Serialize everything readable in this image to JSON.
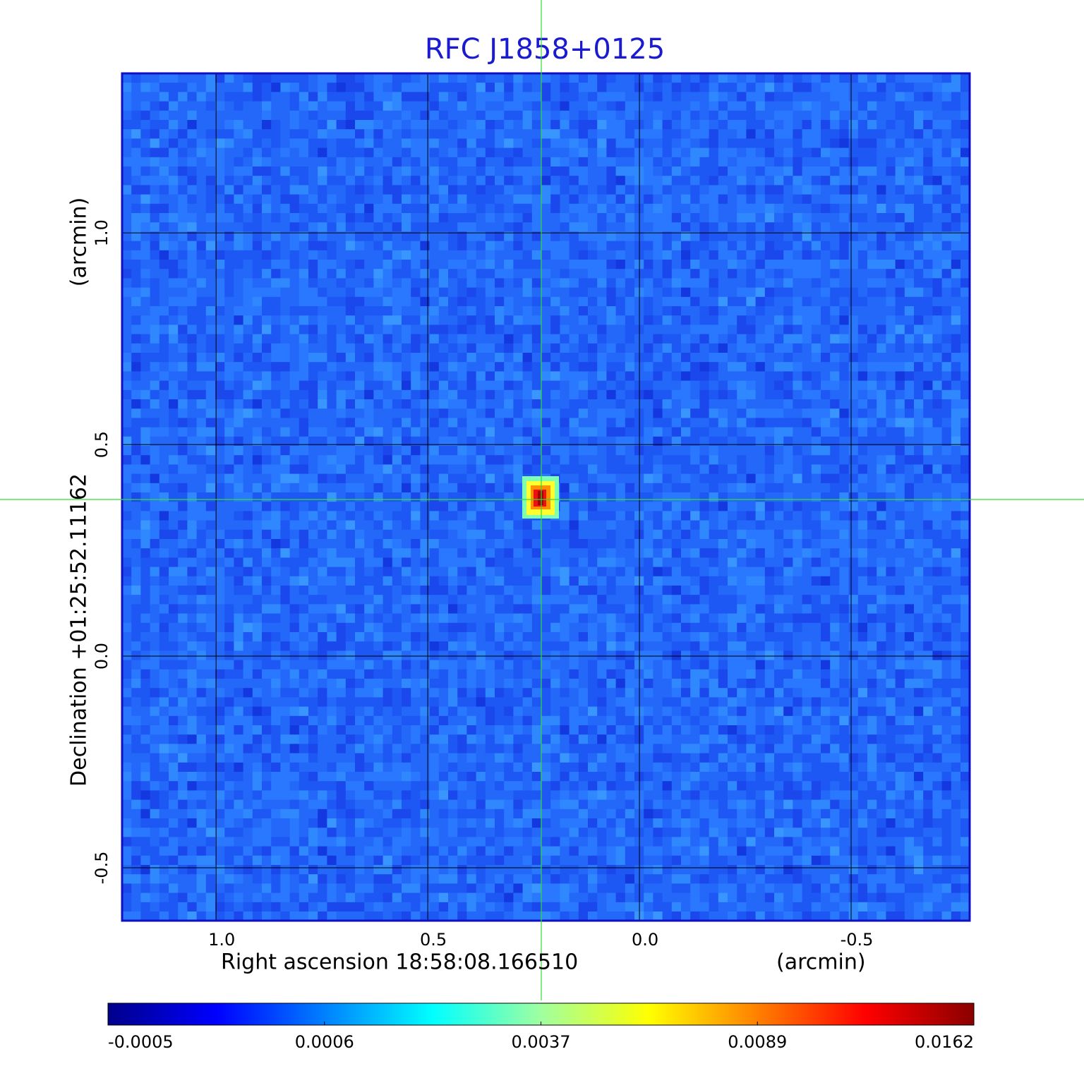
{
  "chart_data": {
    "type": "image",
    "title": "RFC J1858+0125",
    "x_label": "Right ascension  18:58:08.166510",
    "x_unit": "(arcmin)",
    "y_label": "Declination  +01:25:52.11162",
    "y_unit": "(arcmin)",
    "xlim": [
      1.222,
      -0.78
    ],
    "ylim": [
      -0.625,
      1.377
    ],
    "xticks": [
      {
        "value": 1,
        "label": "1.0"
      },
      0.5,
      {
        "value": 0,
        "label": "0.0"
      },
      -0.5
    ],
    "yticks": [
      -0.5,
      {
        "value": 0,
        "label": "0.0"
      },
      0.5,
      {
        "value": 1,
        "label": "1.0"
      }
    ],
    "grid": true,
    "colorbar": {
      "ticks": [
        -0.0005,
        0.0006,
        0.0037,
        0.0089,
        0.0162
      ],
      "colors": [
        "#00008b",
        "#0000ff",
        "#0080ff",
        "#00ffff",
        "#a0ffa0",
        "#ffff00",
        "#ff8000",
        "#ff0000",
        "#8b0000"
      ]
    }
  }
}
